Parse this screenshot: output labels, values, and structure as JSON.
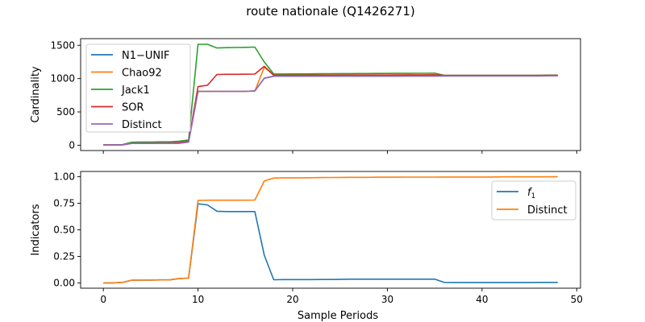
{
  "figure": {
    "title": "route nationale (Q1426271)"
  },
  "colors": {
    "blue": "#1f77b4",
    "orange": "#ff7f0e",
    "green": "#2ca02c",
    "red": "#d62728",
    "purple": "#9467bd"
  },
  "chart_data": [
    {
      "type": "line",
      "title": "",
      "xlabel": "",
      "ylabel": "Cardinality",
      "xlim": [
        -2.4,
        50.4
      ],
      "ylim": [
        -80,
        1600
      ],
      "xticks": [
        0,
        10,
        20,
        30,
        40,
        50
      ],
      "yticks": [
        0,
        500,
        1000,
        1500
      ],
      "show_xtick_labels": false,
      "legend": "upper-left",
      "grid": false,
      "series": [
        {
          "name": "N1−UNIF",
          "color": "#1f77b4",
          "x": [
            0,
            1,
            2,
            3,
            4,
            5,
            6,
            7,
            8,
            9,
            10,
            11,
            12,
            13,
            14,
            15,
            16,
            17,
            18,
            19,
            20,
            21,
            22,
            23,
            24,
            25,
            26,
            27,
            28,
            29,
            30,
            31,
            32,
            33,
            34,
            35,
            36,
            37,
            38,
            39,
            40,
            41,
            42,
            43,
            44,
            45,
            46,
            47,
            48
          ],
          "y": [
            5,
            5,
            5,
            27,
            28,
            28,
            29,
            29,
            29,
            48,
            808,
            808,
            808,
            808,
            808,
            808,
            815,
            1005,
            1035,
            1035,
            1035,
            1035,
            1036,
            1036,
            1036,
            1037,
            1037,
            1037,
            1037,
            1037,
            1037,
            1037,
            1038,
            1038,
            1038,
            1038,
            1040,
            1040,
            1040,
            1040,
            1040,
            1040,
            1040,
            1040,
            1040,
            1040,
            1041,
            1042,
            1042
          ]
        },
        {
          "name": "Chao92",
          "color": "#ff7f0e",
          "x": [
            0,
            1,
            2,
            3,
            4,
            5,
            6,
            7,
            8,
            9,
            10,
            11,
            12,
            13,
            14,
            15,
            16,
            17,
            18,
            19,
            20,
            21,
            22,
            23,
            24,
            25,
            26,
            27,
            28,
            29,
            30,
            31,
            32,
            33,
            34,
            35,
            36,
            37,
            38,
            39,
            40,
            41,
            42,
            43,
            44,
            45,
            46,
            47,
            48
          ],
          "y": [
            5,
            5,
            5,
            27,
            28,
            28,
            29,
            29,
            29,
            48,
            808,
            808,
            808,
            808,
            808,
            808,
            815,
            1170,
            1055,
            1055,
            1055,
            1055,
            1055,
            1055,
            1055,
            1056,
            1056,
            1056,
            1056,
            1056,
            1056,
            1056,
            1057,
            1057,
            1057,
            1057,
            1046,
            1045,
            1045,
            1045,
            1045,
            1045,
            1045,
            1045,
            1045,
            1045,
            1045,
            1046,
            1046
          ]
        },
        {
          "name": "Jack1",
          "color": "#2ca02c",
          "x": [
            0,
            1,
            2,
            3,
            4,
            5,
            6,
            7,
            8,
            9,
            10,
            11,
            12,
            13,
            14,
            15,
            16,
            17,
            18,
            19,
            20,
            21,
            22,
            23,
            24,
            25,
            26,
            27,
            28,
            29,
            30,
            31,
            32,
            33,
            34,
            35,
            36,
            37,
            38,
            39,
            40,
            41,
            42,
            43,
            44,
            45,
            46,
            47,
            48
          ],
          "y": [
            5,
            5,
            8,
            45,
            48,
            48,
            50,
            51,
            60,
            78,
            1515,
            1515,
            1460,
            1465,
            1467,
            1470,
            1473,
            1250,
            1070,
            1070,
            1071,
            1071,
            1072,
            1073,
            1074,
            1075,
            1076,
            1077,
            1077,
            1078,
            1078,
            1079,
            1079,
            1080,
            1080,
            1081,
            1050,
            1050,
            1050,
            1050,
            1050,
            1050,
            1050,
            1050,
            1050,
            1050,
            1050,
            1052,
            1052
          ]
        },
        {
          "name": "SOR",
          "color": "#d62728",
          "x": [
            0,
            1,
            2,
            3,
            4,
            5,
            6,
            7,
            8,
            9,
            10,
            11,
            12,
            13,
            14,
            15,
            16,
            17,
            18,
            19,
            20,
            21,
            22,
            23,
            24,
            25,
            26,
            27,
            28,
            29,
            30,
            31,
            32,
            33,
            34,
            35,
            36,
            37,
            38,
            39,
            40,
            41,
            42,
            43,
            44,
            45,
            46,
            47,
            48
          ],
          "y": [
            5,
            5,
            5,
            28,
            30,
            30,
            32,
            32,
            40,
            60,
            880,
            900,
            1062,
            1065,
            1065,
            1066,
            1068,
            1185,
            1050,
            1050,
            1050,
            1050,
            1051,
            1051,
            1051,
            1052,
            1052,
            1052,
            1053,
            1053,
            1053,
            1054,
            1054,
            1054,
            1054,
            1055,
            1048,
            1048,
            1048,
            1048,
            1048,
            1048,
            1048,
            1048,
            1048,
            1048,
            1048,
            1049,
            1049
          ]
        },
        {
          "name": "Distinct",
          "color": "#9467bd",
          "x": [
            0,
            1,
            2,
            3,
            4,
            5,
            6,
            7,
            8,
            9,
            10,
            11,
            12,
            13,
            14,
            15,
            16,
            17,
            18,
            19,
            20,
            21,
            22,
            23,
            24,
            25,
            26,
            27,
            28,
            29,
            30,
            31,
            32,
            33,
            34,
            35,
            36,
            37,
            38,
            39,
            40,
            41,
            42,
            43,
            44,
            45,
            46,
            47,
            48
          ],
          "y": [
            5,
            5,
            5,
            27,
            28,
            28,
            29,
            29,
            29,
            48,
            808,
            808,
            808,
            808,
            808,
            808,
            815,
            1005,
            1035,
            1035,
            1035,
            1035,
            1036,
            1036,
            1036,
            1037,
            1037,
            1037,
            1037,
            1037,
            1037,
            1037,
            1038,
            1038,
            1038,
            1038,
            1040,
            1040,
            1040,
            1040,
            1040,
            1040,
            1040,
            1040,
            1040,
            1040,
            1041,
            1042,
            1042
          ]
        }
      ]
    },
    {
      "type": "line",
      "title": "",
      "xlabel": "Sample Periods",
      "ylabel": "Indicators",
      "xlim": [
        -2.4,
        50.4
      ],
      "ylim": [
        -0.05,
        1.05
      ],
      "xticks": [
        0,
        10,
        20,
        30,
        40,
        50
      ],
      "yticks": [
        0.0,
        0.25,
        0.5,
        0.75,
        1.0
      ],
      "ytick_labels": [
        "0.00",
        "0.25",
        "0.50",
        "0.75",
        "1.00"
      ],
      "show_xtick_labels": true,
      "legend": "upper-right",
      "grid": false,
      "series": [
        {
          "name": "f1",
          "label_main": "f",
          "label_sub": "1",
          "color": "#1f77b4",
          "x": [
            0,
            1,
            2,
            3,
            4,
            5,
            6,
            7,
            8,
            9,
            10,
            11,
            12,
            13,
            14,
            15,
            16,
            17,
            18,
            19,
            20,
            21,
            22,
            23,
            24,
            25,
            26,
            27,
            28,
            29,
            30,
            31,
            32,
            33,
            34,
            35,
            36,
            37,
            38,
            39,
            40,
            41,
            42,
            43,
            44,
            45,
            46,
            47,
            48
          ],
          "y": [
            0.0,
            0.0,
            0.005,
            0.025,
            0.026,
            0.027,
            0.028,
            0.028,
            0.04,
            0.045,
            0.745,
            0.735,
            0.675,
            0.672,
            0.672,
            0.672,
            0.672,
            0.26,
            0.03,
            0.031,
            0.031,
            0.031,
            0.031,
            0.032,
            0.032,
            0.033,
            0.035,
            0.035,
            0.035,
            0.035,
            0.035,
            0.035,
            0.035,
            0.035,
            0.035,
            0.035,
            0.005,
            0.004,
            0.004,
            0.004,
            0.004,
            0.004,
            0.004,
            0.004,
            0.004,
            0.004,
            0.005,
            0.005,
            0.005
          ]
        },
        {
          "name": "Distinct",
          "color": "#ff7f0e",
          "x": [
            0,
            1,
            2,
            3,
            4,
            5,
            6,
            7,
            8,
            9,
            10,
            11,
            12,
            13,
            14,
            15,
            16,
            17,
            18,
            19,
            20,
            21,
            22,
            23,
            24,
            25,
            26,
            27,
            28,
            29,
            30,
            31,
            32,
            33,
            34,
            35,
            36,
            37,
            38,
            39,
            40,
            41,
            42,
            43,
            44,
            45,
            46,
            47,
            48
          ],
          "y": [
            0.0,
            0.0,
            0.005,
            0.025,
            0.026,
            0.027,
            0.028,
            0.028,
            0.04,
            0.045,
            0.778,
            0.779,
            0.779,
            0.779,
            0.779,
            0.779,
            0.781,
            0.96,
            0.988,
            0.99,
            0.99,
            0.99,
            0.991,
            0.992,
            0.993,
            0.994,
            0.995,
            0.995,
            0.995,
            0.996,
            0.996,
            0.996,
            0.997,
            0.997,
            0.997,
            0.997,
            0.998,
            0.998,
            0.998,
            0.998,
            0.998,
            0.998,
            0.999,
            0.999,
            0.999,
            0.999,
            0.999,
            1.0,
            1.0
          ]
        }
      ]
    }
  ]
}
